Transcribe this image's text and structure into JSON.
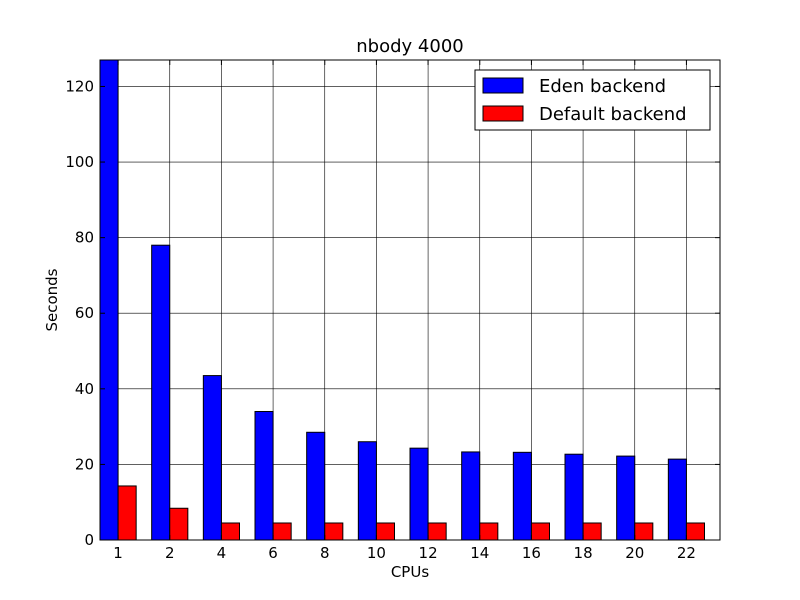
{
  "chart_data": {
    "type": "bar",
    "title": "nbody 4000",
    "xlabel": "CPUs",
    "ylabel": "Seconds",
    "categories": [
      "1",
      "2",
      "4",
      "6",
      "8",
      "10",
      "12",
      "14",
      "16",
      "18",
      "20",
      "22"
    ],
    "series": [
      {
        "name": "Eden backend",
        "color": "#0000ff",
        "values": [
          127,
          78,
          43.5,
          34,
          28.5,
          26,
          24.3,
          23.3,
          23.2,
          22.7,
          22.2,
          21.4
        ]
      },
      {
        "name": "Default backend",
        "color": "#ff0000",
        "values": [
          14.3,
          8.4,
          4.5,
          4.5,
          4.5,
          4.5,
          4.5,
          4.5,
          4.5,
          4.5,
          4.5,
          4.5
        ]
      }
    ],
    "ylim": [
      0,
      127
    ],
    "yticks": [
      0,
      20,
      40,
      60,
      80,
      100,
      120
    ],
    "grid": true,
    "legend_position": "top-right"
  }
}
